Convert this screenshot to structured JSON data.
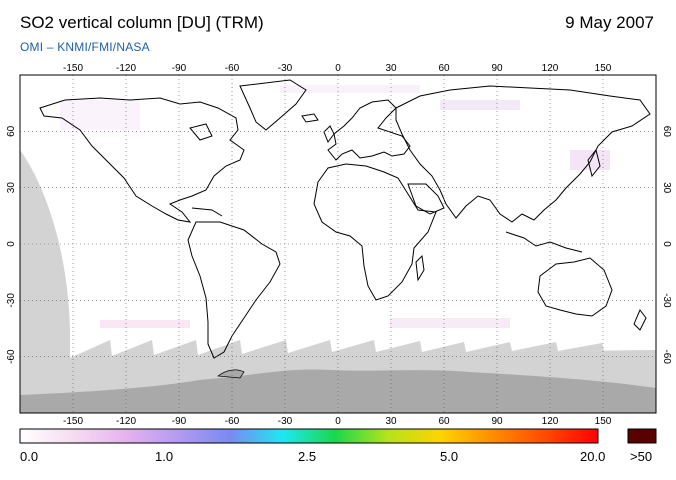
{
  "header": {
    "title": "SO2 vertical column [DU] (TRM)",
    "date": "9 May 2007",
    "source": "OMI  –  KNMI/FMI/NASA"
  },
  "map": {
    "projection": "equirectangular",
    "lon_range": [
      -180,
      180
    ],
    "lat_range": [
      -90,
      90
    ],
    "lon_ticks": [
      -150,
      -120,
      -90,
      -60,
      -30,
      0,
      30,
      60,
      90,
      120,
      150
    ],
    "lon_tick_labels": [
      "-150",
      "-120",
      "-90",
      "-60",
      "-30",
      "0",
      "30",
      "60",
      "90",
      "120",
      "150"
    ],
    "lat_ticks": [
      60,
      30,
      0,
      -30,
      -60
    ],
    "lat_tick_labels": [
      "60",
      "30",
      "0",
      "-30",
      "-60"
    ],
    "colors": {
      "no_data": "#d3d3d3",
      "antarctica": "#a9a9a9",
      "coastline": "#000000",
      "grid": "#555555"
    }
  },
  "colorbar": {
    "tick_labels": [
      "0.0",
      "1.0",
      "2.5",
      "5.0",
      "20.0"
    ],
    "overflow_label": ">50",
    "overflow_color": "#5a0000",
    "stops": [
      "#ffffff",
      "#f6ddf2",
      "#e7b3ee",
      "#b49af0",
      "#7a8af2",
      "#1fe7f2",
      "#1ad84a",
      "#b6e21c",
      "#ffd400",
      "#ff8c00",
      "#ff4a00",
      "#ff0000"
    ]
  }
}
